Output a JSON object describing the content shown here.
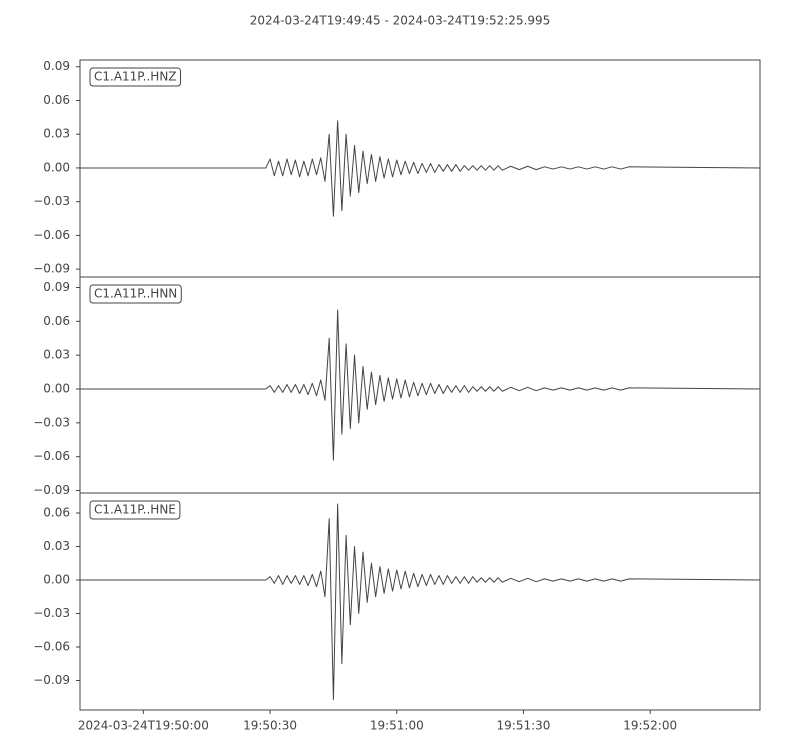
{
  "title": "2024-03-24T19:49:45  -  2024-03-24T19:52:25.995",
  "chart_data": [
    {
      "type": "line",
      "label": "C1.A11P..HNZ",
      "color": "#444444",
      "xlim": [
        0,
        161
      ],
      "ylim": [
        -0.097,
        0.096
      ],
      "yticks": [
        {
          "value": -0.09,
          "label": "−0.09"
        },
        {
          "value": -0.06,
          "label": "−0.06"
        },
        {
          "value": -0.03,
          "label": "−0.03"
        },
        {
          "value": 0,
          "label": "0.00"
        },
        0.03,
        0.06,
        0.09
      ],
      "x": [
        0,
        44,
        45,
        46,
        47,
        48,
        49,
        50,
        51,
        52,
        53,
        54,
        55,
        56,
        57,
        58,
        59,
        60,
        61,
        62,
        63,
        64,
        65,
        66,
        67,
        68,
        69,
        70,
        71,
        72,
        73,
        74,
        75,
        76,
        77,
        78,
        79,
        80,
        81,
        82,
        83,
        84,
        85,
        86,
        87,
        88,
        89,
        90,
        91,
        92,
        93,
        94,
        95,
        96,
        97,
        98,
        99,
        100,
        102,
        104,
        106,
        108,
        110,
        112,
        114,
        116,
        118,
        120,
        122,
        124,
        126,
        128,
        130,
        161
      ],
      "values": [
        0,
        0,
        0.008,
        -0.007,
        0.006,
        -0.007,
        0.008,
        -0.006,
        0.007,
        -0.008,
        0.006,
        -0.007,
        0.008,
        -0.006,
        0.009,
        -0.012,
        0.03,
        -0.043,
        0.042,
        -0.038,
        0.03,
        -0.025,
        0.02,
        -0.022,
        0.015,
        -0.014,
        0.012,
        -0.012,
        0.01,
        -0.009,
        0.008,
        -0.008,
        0.007,
        -0.006,
        0.006,
        -0.005,
        0.005,
        -0.005,
        0.004,
        -0.004,
        0.004,
        -0.004,
        0.003,
        -0.003,
        0.003,
        -0.003,
        0.003,
        -0.003,
        0.002,
        -0.002,
        0.002,
        -0.002,
        0.002,
        -0.002,
        0.002,
        -0.002,
        0.002,
        -0.002,
        0.0015,
        -0.0015,
        0.0015,
        -0.0015,
        0.001,
        -0.001,
        0.001,
        -0.001,
        0.001,
        -0.001,
        0.001,
        -0.001,
        0.001,
        -0.001,
        0.001,
        0
      ]
    },
    {
      "type": "line",
      "label": "C1.A11P..HNN",
      "color": "#444444",
      "xlim": [
        0,
        161
      ],
      "ylim": [
        -0.0922,
        0.0993
      ],
      "yticks": [
        {
          "value": -0.09,
          "label": "−0.09"
        },
        {
          "value": -0.06,
          "label": "−0.06"
        },
        {
          "value": -0.03,
          "label": "−0.03"
        },
        {
          "value": 0,
          "label": "0.00"
        },
        0.03,
        0.06,
        0.09
      ],
      "x": [
        0,
        44,
        45,
        46,
        47,
        48,
        49,
        50,
        51,
        52,
        53,
        54,
        55,
        56,
        57,
        58,
        59,
        60,
        61,
        62,
        63,
        64,
        65,
        66,
        67,
        68,
        69,
        70,
        71,
        72,
        73,
        74,
        75,
        76,
        77,
        78,
        79,
        80,
        81,
        82,
        83,
        84,
        85,
        86,
        87,
        88,
        89,
        90,
        91,
        92,
        93,
        94,
        95,
        96,
        97,
        98,
        99,
        100,
        102,
        104,
        106,
        108,
        110,
        112,
        114,
        116,
        118,
        120,
        122,
        124,
        126,
        128,
        130,
        161
      ],
      "values": [
        0,
        0,
        0.003,
        -0.003,
        0.003,
        -0.003,
        0.004,
        -0.003,
        0.004,
        -0.004,
        0.004,
        -0.005,
        0.005,
        -0.006,
        0.008,
        -0.01,
        0.045,
        -0.063,
        0.07,
        -0.04,
        0.04,
        -0.035,
        0.03,
        -0.03,
        0.02,
        -0.018,
        0.015,
        -0.014,
        0.012,
        -0.011,
        0.01,
        -0.009,
        0.009,
        -0.008,
        0.008,
        -0.007,
        0.006,
        -0.006,
        0.005,
        -0.005,
        0.005,
        -0.004,
        0.004,
        -0.004,
        0.003,
        -0.003,
        0.003,
        -0.003,
        0.003,
        -0.003,
        0.002,
        -0.002,
        0.002,
        -0.002,
        0.002,
        -0.002,
        0.002,
        -0.002,
        0.0015,
        -0.0015,
        0.0015,
        -0.0015,
        0.001,
        -0.001,
        0.001,
        -0.001,
        0.001,
        -0.001,
        0.001,
        -0.001,
        0.001,
        -0.001,
        0.001,
        0
      ]
    },
    {
      "type": "line",
      "label": "C1.A11P..HNE",
      "color": "#444444",
      "xlim": [
        0,
        161
      ],
      "ylim": [
        -0.1164,
        0.0779
      ],
      "yticks": [
        {
          "value": -0.09,
          "label": "−0.09"
        },
        {
          "value": -0.06,
          "label": "−0.06"
        },
        {
          "value": -0.03,
          "label": "−0.03"
        },
        {
          "value": 0,
          "label": "0.00"
        },
        0.03,
        0.06
      ],
      "xticks": [
        {
          "value": 15,
          "label": "2024-03-24T19:50:00"
        },
        {
          "value": 45,
          "label": "19:50:30"
        },
        {
          "value": 75,
          "label": "19:51:00"
        },
        {
          "value": 105,
          "label": "19:51:30"
        },
        {
          "value": 135,
          "label": "19:52:00"
        }
      ],
      "x": [
        0,
        44,
        45,
        46,
        47,
        48,
        49,
        50,
        51,
        52,
        53,
        54,
        55,
        56,
        57,
        58,
        59,
        60,
        61,
        62,
        63,
        64,
        65,
        66,
        67,
        68,
        69,
        70,
        71,
        72,
        73,
        74,
        75,
        76,
        77,
        78,
        79,
        80,
        81,
        82,
        83,
        84,
        85,
        86,
        87,
        88,
        89,
        90,
        91,
        92,
        93,
        94,
        95,
        96,
        97,
        98,
        99,
        100,
        102,
        104,
        106,
        108,
        110,
        112,
        114,
        116,
        118,
        120,
        122,
        124,
        126,
        128,
        130,
        161
      ],
      "values": [
        0,
        0,
        0.003,
        -0.003,
        0.004,
        -0.004,
        0.004,
        -0.003,
        0.004,
        -0.004,
        0.004,
        -0.005,
        0.005,
        -0.006,
        0.008,
        -0.015,
        0.055,
        -0.107,
        0.068,
        -0.075,
        0.04,
        -0.04,
        0.03,
        -0.03,
        0.025,
        -0.02,
        0.015,
        -0.015,
        0.012,
        -0.012,
        0.01,
        -0.01,
        0.009,
        -0.008,
        0.008,
        -0.007,
        0.006,
        -0.006,
        0.005,
        -0.005,
        0.005,
        -0.004,
        0.004,
        -0.004,
        0.004,
        -0.003,
        0.003,
        -0.003,
        0.003,
        -0.003,
        0.003,
        -0.002,
        0.002,
        -0.002,
        0.002,
        -0.002,
        0.002,
        -0.002,
        0.0015,
        -0.0015,
        0.0015,
        -0.0015,
        0.001,
        -0.001,
        0.001,
        -0.001,
        0.001,
        -0.001,
        0.001,
        -0.001,
        0.001,
        -0.001,
        0.001,
        0
      ]
    }
  ]
}
